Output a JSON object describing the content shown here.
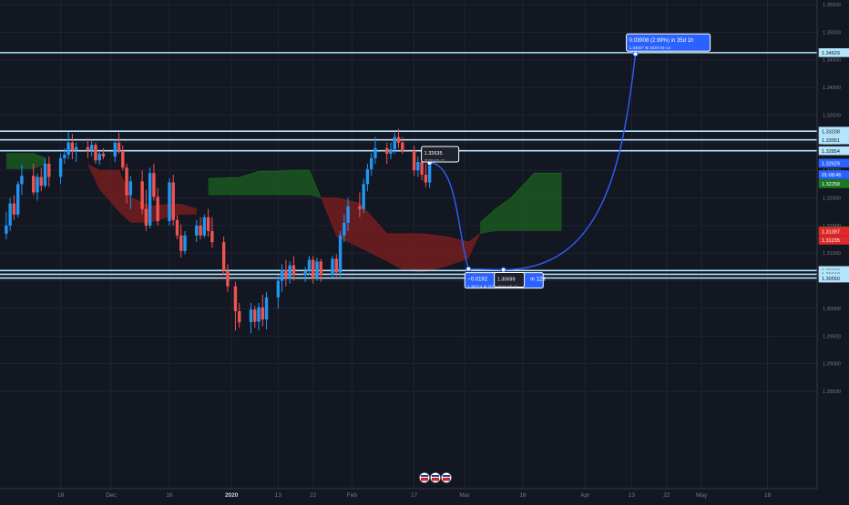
{
  "chart_data": {
    "type": "candlestick",
    "price_axis": {
      "range": [
        1.28,
        1.356
      ],
      "ticks": [
        {
          "v": 1.355,
          "label": "1.35500"
        },
        {
          "v": 1.35,
          "label": "1.35000"
        },
        {
          "v": 1.345,
          "label": "1.34500"
        },
        {
          "v": 1.34,
          "label": "1.34000"
        },
        {
          "v": 1.335,
          "label": "1.33500"
        },
        {
          "v": 1.33,
          "label": "1.33000"
        },
        {
          "v": 1.325,
          "label": "1.32500"
        },
        {
          "v": 1.32,
          "label": "1.32000"
        },
        {
          "v": 1.315,
          "label": "1.31500"
        },
        {
          "v": 1.31,
          "label": "1.31000"
        },
        {
          "v": 1.305,
          "label": "1.30500"
        },
        {
          "v": 1.3,
          "label": "1.30000"
        },
        {
          "v": 1.295,
          "label": "1.29500"
        },
        {
          "v": 1.29,
          "label": "1.29000"
        },
        {
          "v": 1.285,
          "label": "1.28500"
        }
      ]
    },
    "time_axis": {
      "ticks": [
        {
          "date": "2019-11-18",
          "label": "18"
        },
        {
          "date": "2019-12-01",
          "label": "Dec"
        },
        {
          "date": "2019-12-16",
          "label": "16"
        },
        {
          "date": "2020-01-01",
          "label": "2020",
          "bold": true
        },
        {
          "date": "2020-01-13",
          "label": "13"
        },
        {
          "date": "2020-01-22",
          "label": "22"
        },
        {
          "date": "2020-02-01",
          "label": "Feb"
        },
        {
          "date": "2020-02-17",
          "label": "17"
        },
        {
          "date": "2020-03-01",
          "label": "Mar"
        },
        {
          "date": "2020-03-16",
          "label": "16"
        },
        {
          "date": "2020-04-01",
          "label": "Apr"
        },
        {
          "date": "2020-04-13",
          "label": "13"
        },
        {
          "date": "2020-04-22",
          "label": "22"
        },
        {
          "date": "2020-05-01",
          "label": "May"
        },
        {
          "date": "2020-05-18",
          "label": "18"
        }
      ]
    },
    "candles": [
      {
        "d": "2019-11-04",
        "o": 1.3135,
        "h": 1.3175,
        "l": 1.3125,
        "c": 1.315
      },
      {
        "d": "2019-11-05",
        "o": 1.315,
        "h": 1.32,
        "l": 1.314,
        "c": 1.319
      },
      {
        "d": "2019-11-06",
        "o": 1.319,
        "h": 1.3205,
        "l": 1.316,
        "c": 1.317
      },
      {
        "d": "2019-11-07",
        "o": 1.317,
        "h": 1.323,
        "l": 1.3165,
        "c": 1.3225
      },
      {
        "d": "2019-11-08",
        "o": 1.3225,
        "h": 1.326,
        "l": 1.3205,
        "c": 1.324
      },
      {
        "d": "2019-11-11",
        "o": 1.324,
        "h": 1.3262,
        "l": 1.3205,
        "c": 1.321
      },
      {
        "d": "2019-11-12",
        "o": 1.321,
        "h": 1.3245,
        "l": 1.3195,
        "c": 1.3238
      },
      {
        "d": "2019-11-13",
        "o": 1.3238,
        "h": 1.3255,
        "l": 1.3212,
        "c": 1.3222
      },
      {
        "d": "2019-11-14",
        "o": 1.3222,
        "h": 1.3272,
        "l": 1.3218,
        "c": 1.3262
      },
      {
        "d": "2019-11-15",
        "o": 1.3262,
        "h": 1.3275,
        "l": 1.322,
        "c": 1.3238
      },
      {
        "d": "2019-11-18",
        "o": 1.3238,
        "h": 1.328,
        "l": 1.3225,
        "c": 1.3272
      },
      {
        "d": "2019-11-19",
        "o": 1.3272,
        "h": 1.329,
        "l": 1.3262,
        "c": 1.3278
      },
      {
        "d": "2019-11-20",
        "o": 1.3278,
        "h": 1.332,
        "l": 1.327,
        "c": 1.33
      },
      {
        "d": "2019-11-21",
        "o": 1.33,
        "h": 1.3316,
        "l": 1.327,
        "c": 1.3286
      },
      {
        "d": "2019-11-22",
        "o": 1.3286,
        "h": 1.33,
        "l": 1.3265,
        "c": 1.3292
      },
      {
        "d": "2019-11-25",
        "o": 1.3292,
        "h": 1.3308,
        "l": 1.3272,
        "c": 1.3286
      },
      {
        "d": "2019-11-26",
        "o": 1.3286,
        "h": 1.3305,
        "l": 1.3275,
        "c": 1.3296
      },
      {
        "d": "2019-11-27",
        "o": 1.3296,
        "h": 1.33,
        "l": 1.3262,
        "c": 1.3268
      },
      {
        "d": "2019-11-28",
        "o": 1.3268,
        "h": 1.3285,
        "l": 1.326,
        "c": 1.328
      },
      {
        "d": "2019-11-29",
        "o": 1.328,
        "h": 1.329,
        "l": 1.327,
        "c": 1.3275
      },
      {
        "d": "2019-12-02",
        "o": 1.3275,
        "h": 1.3305,
        "l": 1.3265,
        "c": 1.33
      },
      {
        "d": "2019-12-03",
        "o": 1.33,
        "h": 1.3318,
        "l": 1.328,
        "c": 1.3285
      },
      {
        "d": "2019-12-04",
        "o": 1.3285,
        "h": 1.3295,
        "l": 1.325,
        "c": 1.3255
      },
      {
        "d": "2019-12-05",
        "o": 1.3255,
        "h": 1.3262,
        "l": 1.319,
        "c": 1.3205
      },
      {
        "d": "2019-12-06",
        "o": 1.3205,
        "h": 1.324,
        "l": 1.318,
        "c": 1.323
      },
      {
        "d": "2019-12-09",
        "o": 1.323,
        "h": 1.325,
        "l": 1.317,
        "c": 1.318
      },
      {
        "d": "2019-12-10",
        "o": 1.318,
        "h": 1.3215,
        "l": 1.314,
        "c": 1.315
      },
      {
        "d": "2019-12-11",
        "o": 1.315,
        "h": 1.3255,
        "l": 1.3145,
        "c": 1.3245
      },
      {
        "d": "2019-12-12",
        "o": 1.3245,
        "h": 1.3262,
        "l": 1.3195,
        "c": 1.3202
      },
      {
        "d": "2019-12-13",
        "o": 1.3202,
        "h": 1.3218,
        "l": 1.315,
        "c": 1.3158
      },
      {
        "d": "2019-12-16",
        "o": 1.3158,
        "h": 1.3235,
        "l": 1.315,
        "c": 1.3228
      },
      {
        "d": "2019-12-17",
        "o": 1.3228,
        "h": 1.3242,
        "l": 1.315,
        "c": 1.316
      },
      {
        "d": "2019-12-18",
        "o": 1.316,
        "h": 1.3168,
        "l": 1.3125,
        "c": 1.3132
      },
      {
        "d": "2019-12-19",
        "o": 1.3132,
        "h": 1.3152,
        "l": 1.3092,
        "c": 1.3104
      },
      {
        "d": "2019-12-20",
        "o": 1.3104,
        "h": 1.314,
        "l": 1.3098,
        "c": 1.3132
      },
      {
        "d": "2019-12-23",
        "o": 1.3132,
        "h": 1.316,
        "l": 1.312,
        "c": 1.315
      },
      {
        "d": "2019-12-24",
        "o": 1.315,
        "h": 1.3165,
        "l": 1.3125,
        "c": 1.3132
      },
      {
        "d": "2019-12-25",
        "o": 1.3132,
        "h": 1.317,
        "l": 1.3128,
        "c": 1.3165
      },
      {
        "d": "2019-12-26",
        "o": 1.3165,
        "h": 1.318,
        "l": 1.313,
        "c": 1.314
      },
      {
        "d": "2019-12-27",
        "o": 1.314,
        "h": 1.3165,
        "l": 1.311,
        "c": 1.312
      },
      {
        "d": "2019-12-30",
        "o": 1.312,
        "h": 1.313,
        "l": 1.306,
        "c": 1.3068
      },
      {
        "d": "2019-12-31",
        "o": 1.3068,
        "h": 1.308,
        "l": 1.303,
        "c": 1.304
      },
      {
        "d": "2020-01-02",
        "o": 1.304,
        "h": 1.3048,
        "l": 1.296,
        "c": 1.2995
      },
      {
        "d": "2020-01-03",
        "o": 1.2995,
        "h": 1.301,
        "l": 1.2965,
        "c": 1.2975
      },
      {
        "d": "2020-01-06",
        "o": 1.2975,
        "h": 1.301,
        "l": 1.2955,
        "c": 1.2998
      },
      {
        "d": "2020-01-07",
        "o": 1.2998,
        "h": 1.3005,
        "l": 1.2965,
        "c": 1.2976
      },
      {
        "d": "2020-01-08",
        "o": 1.2976,
        "h": 1.301,
        "l": 1.296,
        "c": 1.3002
      },
      {
        "d": "2020-01-09",
        "o": 1.3002,
        "h": 1.3025,
        "l": 1.2968,
        "c": 1.298
      },
      {
        "d": "2020-01-10",
        "o": 1.298,
        "h": 1.303,
        "l": 1.2962,
        "c": 1.302
      },
      {
        "d": "2020-01-13",
        "o": 1.302,
        "h": 1.306,
        "l": 1.3,
        "c": 1.305
      },
      {
        "d": "2020-01-14",
        "o": 1.305,
        "h": 1.308,
        "l": 1.303,
        "c": 1.307
      },
      {
        "d": "2020-01-15",
        "o": 1.307,
        "h": 1.3088,
        "l": 1.304,
        "c": 1.3055
      },
      {
        "d": "2020-01-16",
        "o": 1.3055,
        "h": 1.3085,
        "l": 1.3045,
        "c": 1.3078
      },
      {
        "d": "2020-01-17",
        "o": 1.3078,
        "h": 1.3095,
        "l": 1.305,
        "c": 1.306
      },
      {
        "d": "2020-01-20",
        "o": 1.306,
        "h": 1.3075,
        "l": 1.3048,
        "c": 1.3068
      },
      {
        "d": "2020-01-21",
        "o": 1.3068,
        "h": 1.3095,
        "l": 1.306,
        "c": 1.3088
      },
      {
        "d": "2020-01-22",
        "o": 1.3088,
        "h": 1.3095,
        "l": 1.3045,
        "c": 1.3055
      },
      {
        "d": "2020-01-23",
        "o": 1.3055,
        "h": 1.3092,
        "l": 1.305,
        "c": 1.3085
      },
      {
        "d": "2020-01-24",
        "o": 1.3085,
        "h": 1.309,
        "l": 1.3048,
        "c": 1.306
      },
      {
        "d": "2020-01-27",
        "o": 1.306,
        "h": 1.3095,
        "l": 1.3055,
        "c": 1.309
      },
      {
        "d": "2020-01-28",
        "o": 1.309,
        "h": 1.3098,
        "l": 1.3058,
        "c": 1.3065
      },
      {
        "d": "2020-01-29",
        "o": 1.3065,
        "h": 1.314,
        "l": 1.3055,
        "c": 1.3132
      },
      {
        "d": "2020-01-30",
        "o": 1.3132,
        "h": 1.317,
        "l": 1.312,
        "c": 1.3155
      },
      {
        "d": "2020-01-31",
        "o": 1.3155,
        "h": 1.32,
        "l": 1.314,
        "c": 1.3185
      },
      {
        "d": "2020-02-03",
        "o": 1.3185,
        "h": 1.321,
        "l": 1.3165,
        "c": 1.318
      },
      {
        "d": "2020-02-04",
        "o": 1.318,
        "h": 1.3235,
        "l": 1.3172,
        "c": 1.3225
      },
      {
        "d": "2020-02-05",
        "o": 1.3225,
        "h": 1.3262,
        "l": 1.3212,
        "c": 1.3252
      },
      {
        "d": "2020-02-06",
        "o": 1.3252,
        "h": 1.3282,
        "l": 1.324,
        "c": 1.3272
      },
      {
        "d": "2020-02-07",
        "o": 1.3272,
        "h": 1.331,
        "l": 1.3262,
        "c": 1.329
      },
      {
        "d": "2020-02-10",
        "o": 1.329,
        "h": 1.33,
        "l": 1.3262,
        "c": 1.328
      },
      {
        "d": "2020-02-11",
        "o": 1.328,
        "h": 1.33,
        "l": 1.327,
        "c": 1.3288
      },
      {
        "d": "2020-02-12",
        "o": 1.3288,
        "h": 1.3318,
        "l": 1.328,
        "c": 1.331
      },
      {
        "d": "2020-02-13",
        "o": 1.331,
        "h": 1.3325,
        "l": 1.329,
        "c": 1.33
      },
      {
        "d": "2020-02-14",
        "o": 1.33,
        "h": 1.331,
        "l": 1.328,
        "c": 1.3285
      },
      {
        "d": "2020-02-17",
        "o": 1.3285,
        "h": 1.3295,
        "l": 1.324,
        "c": 1.325
      },
      {
        "d": "2020-02-18",
        "o": 1.325,
        "h": 1.3275,
        "l": 1.3238,
        "c": 1.3265
      },
      {
        "d": "2020-02-19",
        "o": 1.3265,
        "h": 1.327,
        "l": 1.3232,
        "c": 1.3242
      },
      {
        "d": "2020-02-20",
        "o": 1.3242,
        "h": 1.3262,
        "l": 1.322,
        "c": 1.3228
      },
      {
        "d": "2020-02-21",
        "o": 1.3228,
        "h": 1.327,
        "l": 1.3218,
        "c": 1.3263
      }
    ],
    "ichimoku_cloud": {
      "bearish": [
        [
          "2019-11-25",
          1.326,
          1.326
        ],
        [
          "2019-11-28",
          1.325,
          1.3215
        ],
        [
          "2019-12-03",
          1.325,
          1.3175
        ],
        [
          "2019-12-06",
          1.32,
          1.3155
        ],
        [
          "2019-12-11",
          1.3185,
          1.3155
        ],
        [
          "2019-12-16",
          1.3188,
          1.3165
        ],
        [
          "2019-12-19",
          1.3188,
          1.317
        ],
        [
          "2019-12-23",
          1.318,
          1.317
        ]
      ],
      "bullish": [
        [
          "2019-11-04",
          1.328,
          1.3252
        ],
        [
          "2019-11-11",
          1.328,
          1.3252
        ],
        [
          "2019-11-14",
          1.3272,
          1.326
        ]
      ],
      "bullish_2": [
        [
          "2019-12-26",
          1.3235,
          1.3205
        ],
        [
          "2020-01-03",
          1.3237,
          1.3205
        ],
        [
          "2020-01-08",
          1.3248,
          1.3205
        ],
        [
          "2020-01-13",
          1.3248,
          1.3205
        ],
        [
          "2020-01-16",
          1.325,
          1.3205
        ],
        [
          "2020-01-21",
          1.325,
          1.3205
        ],
        [
          "2020-01-24",
          1.32,
          1.32
        ]
      ],
      "bearish_2": [
        [
          "2020-01-24",
          1.32,
          1.32
        ],
        [
          "2020-01-28",
          1.32,
          1.313
        ],
        [
          "2020-02-03",
          1.319,
          1.311
        ],
        [
          "2020-02-10",
          1.3135,
          1.3085
        ],
        [
          "2020-02-14",
          1.3135,
          1.307
        ],
        [
          "2020-02-19",
          1.3135,
          1.3065
        ],
        [
          "2020-02-25",
          1.313,
          1.3075
        ],
        [
          "2020-03-02",
          1.312,
          1.309
        ],
        [
          "2020-03-05",
          1.3135,
          1.3135
        ]
      ],
      "bullish_3": [
        [
          "2020-03-05",
          1.3155,
          1.3135
        ],
        [
          "2020-03-09",
          1.318,
          1.314
        ],
        [
          "2020-03-13",
          1.32,
          1.314
        ],
        [
          "2020-03-19",
          1.3245,
          1.314
        ],
        [
          "2020-03-26",
          1.3245,
          1.314
        ]
      ]
    },
    "horizontal_levels": [
      1.34629,
      1.33208,
      1.33051,
      1.32854,
      1.30686,
      1.30618,
      1.3055
    ],
    "projection_path": [
      [
        "2020-02-21",
        1.32635
      ],
      [
        "2020-03-02",
        1.30714
      ],
      [
        "2020-03-11",
        1.30699
      ],
      [
        "2020-04-14",
        1.34607
      ]
    ],
    "price_labels": [
      {
        "v": 1.34629,
        "text": "1.34629",
        "style": "outline"
      },
      {
        "v": 1.33208,
        "text": "1.33208",
        "style": "outline"
      },
      {
        "v": 1.33051,
        "text": "1.33051",
        "style": "outline"
      },
      {
        "v": 1.32854,
        "text": "1.32854",
        "style": "outline"
      },
      {
        "v": 1.32629,
        "text": "1.32629",
        "style": "blue"
      },
      {
        "v": 1.3242,
        "text": "01:08:46",
        "style": "blue"
      },
      {
        "v": 1.32258,
        "text": "1.32258",
        "style": "green"
      },
      {
        "v": 1.31406,
        "text": "1.31406",
        "style": "green"
      },
      {
        "v": 1.31397,
        "text": "1.31397",
        "style": "red"
      },
      {
        "v": 1.31235,
        "text": "1.31235",
        "style": "red"
      },
      {
        "v": 1.30686,
        "text": "1.30686",
        "style": "outline"
      },
      {
        "v": 1.30618,
        "text": "1.30618",
        "style": "outline"
      },
      {
        "v": 1.3055,
        "text": "1.30550",
        "style": "outline"
      }
    ],
    "annotations": {
      "peak_label": {
        "price": "1.32635",
        "date": "2020-02-21"
      },
      "down_move": {
        "change": "−0.0192",
        "span": "in 12d",
        "price": "1.30714",
        "date": "2020-03-02"
      },
      "low_label": {
        "price": "1.30699",
        "date": "2020-03-11"
      },
      "up_move": {
        "change": "0.03908 (2.99%) in 35d 1h",
        "price": "1.34607",
        "date": "2020-04-14"
      }
    },
    "grid": true,
    "colors": {
      "background": "#131722",
      "up": "#2196f3",
      "down": "#ef5350",
      "cloud_bull": "#1b5e20",
      "cloud_bear": "#7b1d1d",
      "level": "#b3e5fc",
      "accent": "#2962ff"
    }
  }
}
